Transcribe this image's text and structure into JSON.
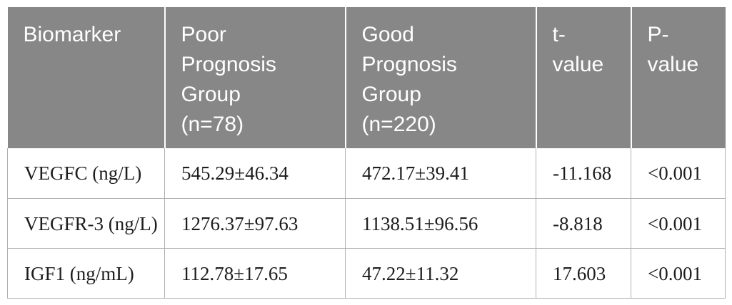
{
  "meta": {
    "description": "Scientific paper table comparing serum biomarker levels between prognosis groups",
    "colors": {
      "header_background": "#878787",
      "header_text": "#ffffff",
      "body_text": "#1d1d1d",
      "body_border": "#b0b0b0",
      "header_separator": "#ffffff",
      "page_background": "#ffffff"
    }
  },
  "table": {
    "header": {
      "columns": [
        {
          "label": "Biomarker"
        },
        {
          "label": "Poor\nPrognosis\nGroup\n(n=78)"
        },
        {
          "label": "Good\nPrognosis\nGroup\n(n=220)"
        },
        {
          "label": "t-\nvalue"
        },
        {
          "label": "P-\nvalue"
        }
      ]
    },
    "rows": [
      {
        "biomarker": "VEGFC (ng/L)",
        "poor_prognosis": "545.29±46.34",
        "good_prognosis": "472.17±39.41",
        "t_value": "-11.168",
        "p_value": "<0.001"
      },
      {
        "biomarker": "VEGFR-3 (ng/L)",
        "poor_prognosis": "1276.37±97.63",
        "good_prognosis": "1138.51±96.56",
        "t_value": "-8.818",
        "p_value": "<0.001"
      },
      {
        "biomarker": "IGF1 (ng/mL)",
        "poor_prognosis": "112.78±17.65",
        "good_prognosis": "47.22±11.32",
        "t_value": "17.603",
        "p_value": "<0.001"
      }
    ]
  },
  "chart_data": {
    "type": "table",
    "title": "",
    "columns": [
      "Biomarker",
      "Poor Prognosis Group (n=78)",
      "Good Prognosis Group (n=220)",
      "t-value",
      "P-value"
    ],
    "rows": [
      [
        "VEGFC (ng/L)",
        "545.29±46.34",
        "472.17±39.41",
        "-11.168",
        "<0.001"
      ],
      [
        "VEGFR-3 (ng/L)",
        "1276.37±97.63",
        "1138.51±96.56",
        "-8.818",
        "<0.001"
      ],
      [
        "IGF1 (ng/mL)",
        "112.78±17.65",
        "47.22±11.32",
        "17.603",
        "<0.001"
      ]
    ]
  }
}
